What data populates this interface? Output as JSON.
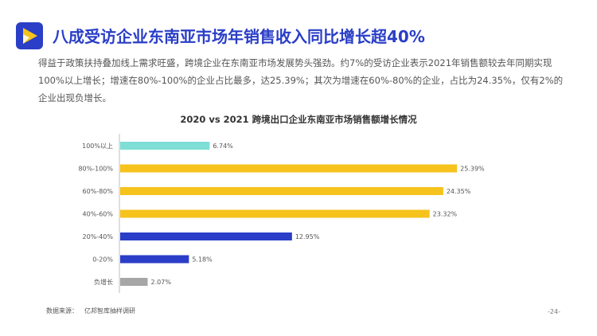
{
  "header": {
    "title": "八成受访企业东南亚市场年销售收入同比增长超40%",
    "description": "得益于政策扶持叠加线上需求旺盛，跨境企业在东南亚市场发展势头强劲。约7%的受访企业表示2021年销售额较去年同期实现100%以上增长；增速在80%-100%的企业占比最多，达25.39%；其次为增速在60%-80%的企业，占比为24.35%，仅有2%的企业出现负增长。"
  },
  "chart_data": {
    "type": "bar",
    "orientation": "horizontal",
    "title": "2020 vs 2021 跨境出口企业东南亚市场销售额增长情况",
    "categories": [
      "100%以上",
      "80%-100%",
      "60%-80%",
      "40%-60%",
      "20%-40%",
      "0-20%",
      "负增长"
    ],
    "values": [
      6.74,
      25.39,
      24.35,
      23.32,
      12.95,
      5.18,
      2.07
    ],
    "value_labels": [
      "6.74%",
      "25.39%",
      "24.35%",
      "23.32%",
      "12.95%",
      "5.18%",
      "2.07%"
    ],
    "colors": [
      "#7fded6",
      "#f6c21c",
      "#f6c21c",
      "#f6c21c",
      "#2a3ec7",
      "#2a3ec7",
      "#a6a6a6"
    ],
    "xlim": [
      0,
      30
    ],
    "grid": false,
    "legend": "none"
  },
  "footer": {
    "source_label": "数据来源：",
    "source_text": "亿邦智库抽样调研",
    "page": "-24-"
  }
}
